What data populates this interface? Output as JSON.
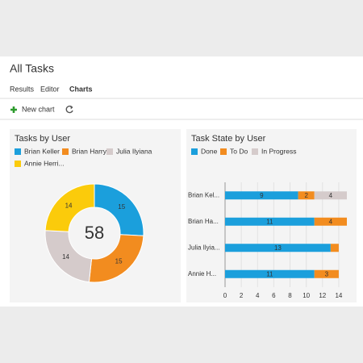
{
  "header": {
    "title": "All Tasks",
    "tabs": [
      "Results",
      "Editor",
      "Charts"
    ],
    "active_tab": 2
  },
  "toolbar": {
    "new_chart": "New chart"
  },
  "chart_data": [
    {
      "type": "donut",
      "title": "Tasks by User",
      "categories": [
        "Brian Keller",
        "Brian Harry",
        "Julia Ilyiana",
        "Annie Herri..."
      ],
      "values": [
        15,
        15,
        14,
        14
      ],
      "colors": [
        "#1b9fdc",
        "#f28c1f",
        "#d5cbcb",
        "#fbcb0b"
      ],
      "total": 58
    },
    {
      "type": "bar",
      "orientation": "horizontal",
      "stacked": true,
      "title": "Task State by User",
      "categories": [
        "Brian Kel...",
        "Brian Ha...",
        "Julia Ilyia...",
        "Annie H..."
      ],
      "series": [
        {
          "name": "Done",
          "color": "#1b9fdc",
          "values": [
            9,
            11,
            13,
            11
          ]
        },
        {
          "name": "To Do",
          "color": "#f28c1f",
          "values": [
            2,
            4,
            1,
            3
          ]
        },
        {
          "name": "In Progress",
          "color": "#d5cbcb",
          "values": [
            4,
            0,
            0,
            0
          ]
        }
      ],
      "xlim": [
        0,
        15
      ],
      "xticks": [
        0,
        2,
        4,
        6,
        8,
        10,
        12,
        14
      ],
      "grid": true
    }
  ]
}
